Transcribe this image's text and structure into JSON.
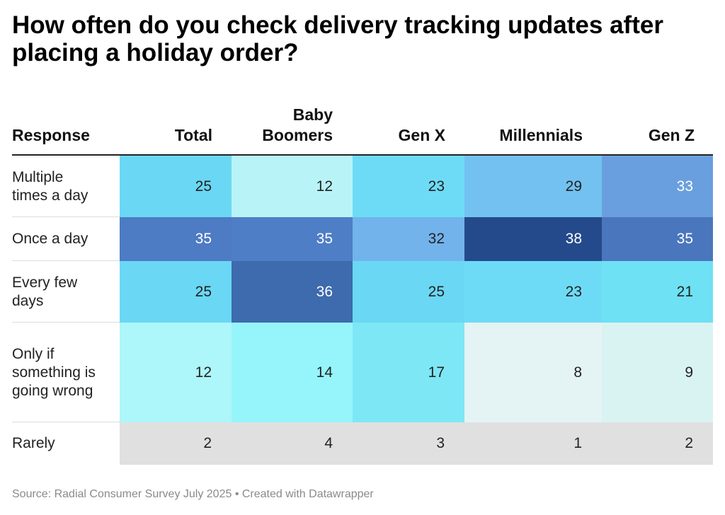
{
  "title": "How often do you check delivery tracking updates after placing a holiday order?",
  "header": {
    "response": "Response",
    "columns": [
      "Total",
      "Baby Boomers",
      "Gen X",
      "Millennials",
      "Gen Z"
    ]
  },
  "chart_data": {
    "type": "table",
    "title": "How often do you check delivery tracking updates after placing a holiday order?",
    "columns": [
      "Total",
      "Baby Boomers",
      "Gen X",
      "Millennials",
      "Gen Z"
    ],
    "rows": [
      {
        "label": "Multiple times a day",
        "values": [
          25,
          12,
          23,
          29,
          33
        ]
      },
      {
        "label": "Once a day",
        "values": [
          35,
          35,
          32,
          38,
          35
        ]
      },
      {
        "label": "Every few days",
        "values": [
          25,
          36,
          25,
          23,
          21
        ]
      },
      {
        "label": "Only if something is going wrong",
        "values": [
          12,
          14,
          17,
          8,
          9
        ]
      },
      {
        "label": "Rarely",
        "values": [
          2,
          4,
          3,
          1,
          2
        ]
      }
    ],
    "cell_colors": [
      [
        "#6ad7f4",
        "#b8f3f7",
        "#6edbf6",
        "#73c1f0",
        "#6a9fdf"
      ],
      [
        "#4d7bc4",
        "#4e7ec6",
        "#72b3ec",
        "#244a8c",
        "#4a76bd"
      ],
      [
        "#6ad7f4",
        "#3e6aae",
        "#6ad7f4",
        "#6edbf6",
        "#6ee1f4"
      ],
      [
        "#adf6f9",
        "#95f5fb",
        "#7de7f5",
        "#e4f3f3",
        "#d9f3f3"
      ],
      [
        "#e0e0e0",
        "#e0e0e0",
        "#e0e0e0",
        "#e0e0e0",
        "#e0e0e0"
      ]
    ],
    "cell_text_colors": [
      [
        "#222222",
        "#222222",
        "#222222",
        "#222222",
        "#ffffff"
      ],
      [
        "#ffffff",
        "#ffffff",
        "#222222",
        "#ffffff",
        "#ffffff"
      ],
      [
        "#222222",
        "#ffffff",
        "#222222",
        "#222222",
        "#222222"
      ],
      [
        "#222222",
        "#222222",
        "#222222",
        "#222222",
        "#222222"
      ],
      [
        "#222222",
        "#222222",
        "#222222",
        "#222222",
        "#222222"
      ]
    ]
  },
  "footer": {
    "source": "Source: Radial Consumer Survey July 2025 • Created with Datawrapper"
  }
}
